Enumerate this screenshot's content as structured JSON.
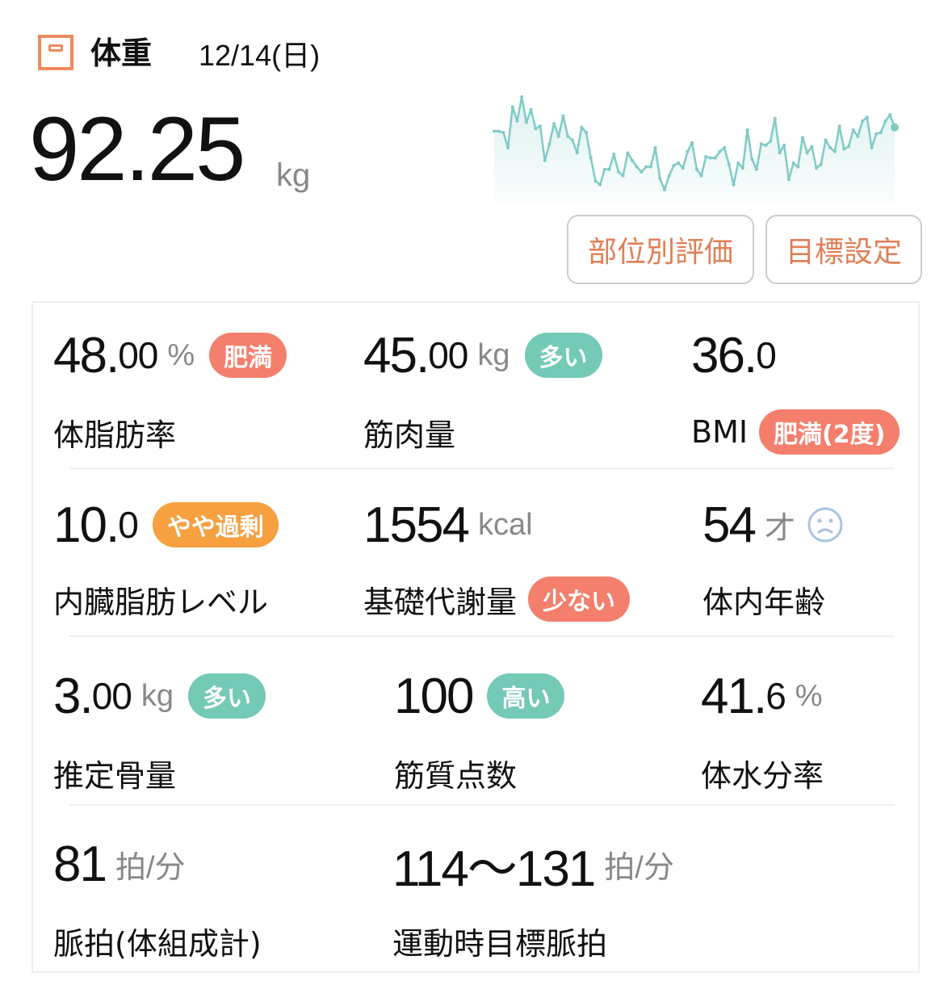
{
  "header": {
    "title": "体重",
    "date": "12/14(日)",
    "icon": "scale-icon"
  },
  "weight": {
    "value": "92.25",
    "unit": "kg"
  },
  "trend": {
    "color": "#7ecbc6",
    "points": [
      29,
      29,
      28.5,
      22.5,
      38.5,
      33,
      42.5,
      32.5,
      37.5,
      30,
      31,
      17.5,
      24,
      32,
      27,
      35,
      27,
      25.5,
      20.5,
      30.5,
      28.5,
      18.5,
      9.5,
      8,
      14,
      14,
      20,
      13,
      11.5,
      20.5,
      17.5,
      15,
      13,
      15,
      15,
      22.5,
      10.5,
      6,
      11.5,
      15.5,
      16.5,
      14.5,
      21,
      24.5,
      14,
      11.5,
      19,
      18.5,
      18.5,
      21,
      22.5,
      16,
      8,
      16.5,
      14.5,
      29.5,
      18,
      14,
      24,
      23.5,
      25,
      34,
      20.5,
      23.5,
      10,
      16.5,
      15,
      26.5,
      20.5,
      23,
      14.5,
      16,
      25.5,
      22.5,
      21,
      31,
      22,
      23,
      29.5,
      27,
      33,
      34.5,
      22.5,
      28,
      28.5,
      33,
      35.5,
      30.5
    ]
  },
  "buttons": {
    "part_eval": "部位別評価",
    "goal": "目標設定"
  },
  "colors": {
    "accent": "#ef8a5c",
    "bad": "#f47f6d",
    "good": "#74c9b7",
    "warn": "#f6a040",
    "face": "#a9c4e0"
  },
  "metrics": [
    {
      "num": "48.",
      "dec": "00",
      "unit": "%",
      "badge": "肥満",
      "label": "体脂肪率"
    },
    {
      "num": "45.",
      "dec": "00",
      "unit": "kg",
      "badge": "多い",
      "label": "筋肉量"
    },
    {
      "num": "36.",
      "dec": "0",
      "label": "BMI",
      "label_badge": "肥満(2度)"
    },
    {
      "num": "10.",
      "dec": "0",
      "badge": "やや過剰",
      "label": "内臓脂肪レベル"
    },
    {
      "num": "1554",
      "unit": "kcal",
      "label": "基礎代謝量",
      "label_badge": "少ない"
    },
    {
      "num": "54",
      "unit": "才",
      "icon": "sad-face-icon",
      "label": "体内年齢"
    },
    {
      "num": "3.",
      "dec": "00",
      "unit": "kg",
      "badge": "多い",
      "label": "推定骨量"
    },
    {
      "num": "100",
      "badge": "高い",
      "label": "筋質点数"
    },
    {
      "num": "41.",
      "dec": "6",
      "unit": "%",
      "label": "体水分率"
    },
    {
      "num": "81",
      "unit": "拍/分",
      "label": "脈拍(体組成計)"
    },
    {
      "num": "114〜131",
      "unit": "拍/分",
      "label": "運動時目標脈拍"
    }
  ]
}
